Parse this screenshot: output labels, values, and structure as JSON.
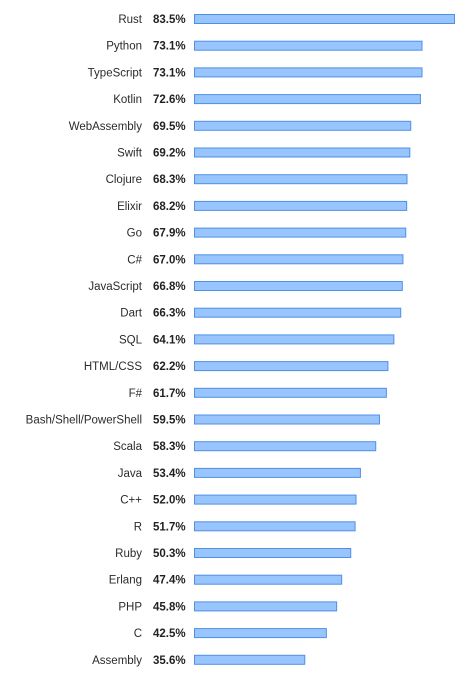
{
  "chart_data": {
    "type": "bar",
    "orientation": "horizontal",
    "title": "",
    "xlabel": "",
    "ylabel": "",
    "xlim": [
      0,
      83.5
    ],
    "grid": false,
    "legend": "none",
    "value_suffix": "%",
    "colors": {
      "bar_fill": "#99c5ff",
      "bar_stroke": "#4f8fe6",
      "label_text": "#2b2b2b",
      "value_text": "#222222"
    },
    "categories": [
      "Rust",
      "Python",
      "TypeScript",
      "Kotlin",
      "WebAssembly",
      "Swift",
      "Clojure",
      "Elixir",
      "Go",
      "C#",
      "JavaScript",
      "Dart",
      "SQL",
      "HTML/CSS",
      "F#",
      "Bash/Shell/PowerShell",
      "Scala",
      "Java",
      "C++",
      "R",
      "Ruby",
      "Erlang",
      "PHP",
      "C",
      "Assembly"
    ],
    "values": [
      83.5,
      73.1,
      73.1,
      72.6,
      69.5,
      69.2,
      68.3,
      68.2,
      67.9,
      67.0,
      66.8,
      66.3,
      64.1,
      62.2,
      61.7,
      59.5,
      58.3,
      53.4,
      52.0,
      51.7,
      50.3,
      47.4,
      45.8,
      42.5,
      35.6
    ],
    "value_labels": [
      "83.5%",
      "73.1%",
      "73.1%",
      "72.6%",
      "69.5%",
      "69.2%",
      "68.3%",
      "68.2%",
      "67.9%",
      "67.0%",
      "66.8%",
      "66.3%",
      "64.1%",
      "62.2%",
      "61.7%",
      "59.5%",
      "58.3%",
      "53.4%",
      "52.0%",
      "51.7%",
      "50.3%",
      "47.4%",
      "45.8%",
      "42.5%",
      "35.6%"
    ]
  }
}
